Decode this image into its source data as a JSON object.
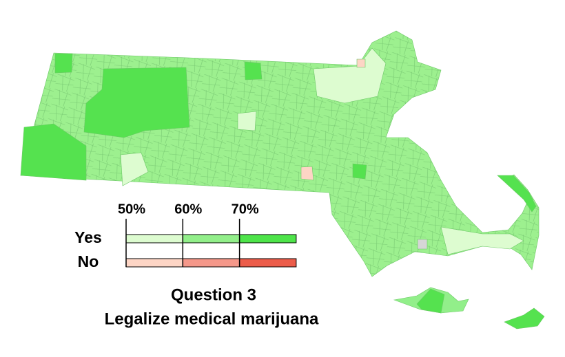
{
  "legend": {
    "ticks": [
      "50%",
      "60%",
      "70%"
    ],
    "rows": [
      {
        "label": "Yes",
        "colors": [
          "#ddfcd0",
          "#92ef8a",
          "#4ee44a"
        ]
      },
      {
        "label": "No",
        "colors": [
          "#fdd5c5",
          "#f5988a",
          "#ec5c4a"
        ]
      }
    ]
  },
  "title": {
    "line1": "Question 3",
    "line2": "Legalize medical marijuana"
  }
}
